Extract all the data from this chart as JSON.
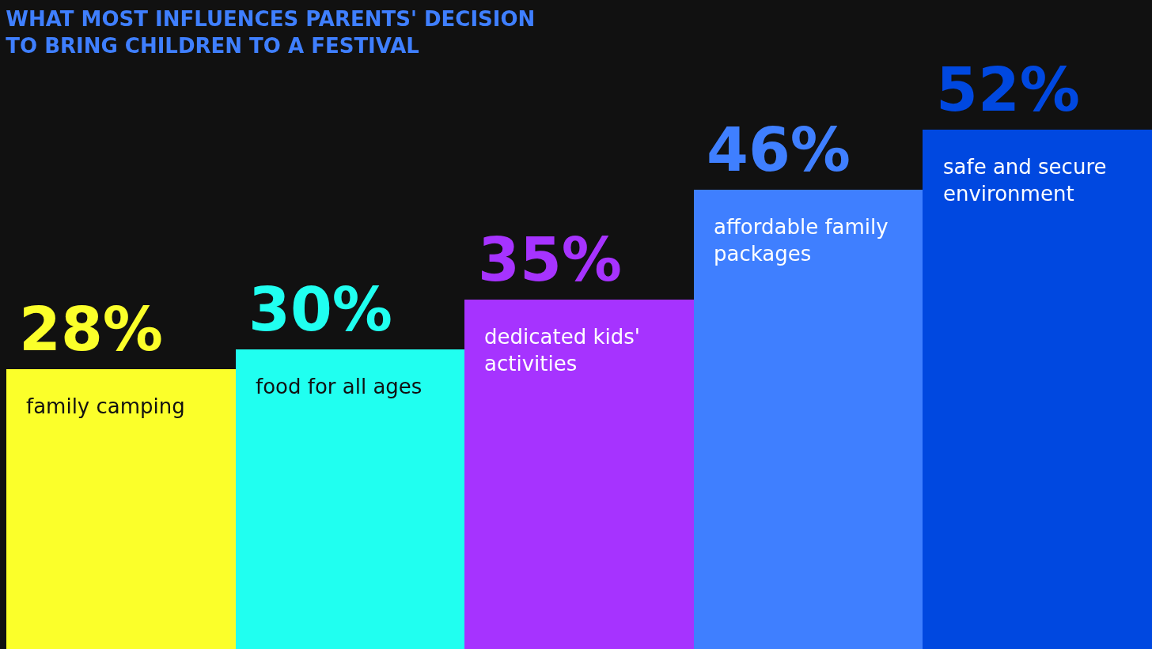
{
  "chart_data": {
    "type": "bar",
    "title": "WHAT MOST INFLUENCES PARENTS' DECISION\nTO BRING CHILDREN TO A FESTIVAL",
    "categories": [
      "family camping",
      "food for all ages",
      "dedicated kids' activities",
      "affordable family packages",
      "safe and secure environment"
    ],
    "values": [
      28,
      30,
      35,
      46,
      52
    ],
    "value_labels": [
      "28%",
      "30%",
      "35%",
      "46%",
      "52%"
    ],
    "colors": [
      "#fbff2a",
      "#20fff0",
      "#a633ff",
      "#3f7fff",
      "#0048e0"
    ],
    "ylim": [
      0,
      65
    ],
    "legend": false
  }
}
